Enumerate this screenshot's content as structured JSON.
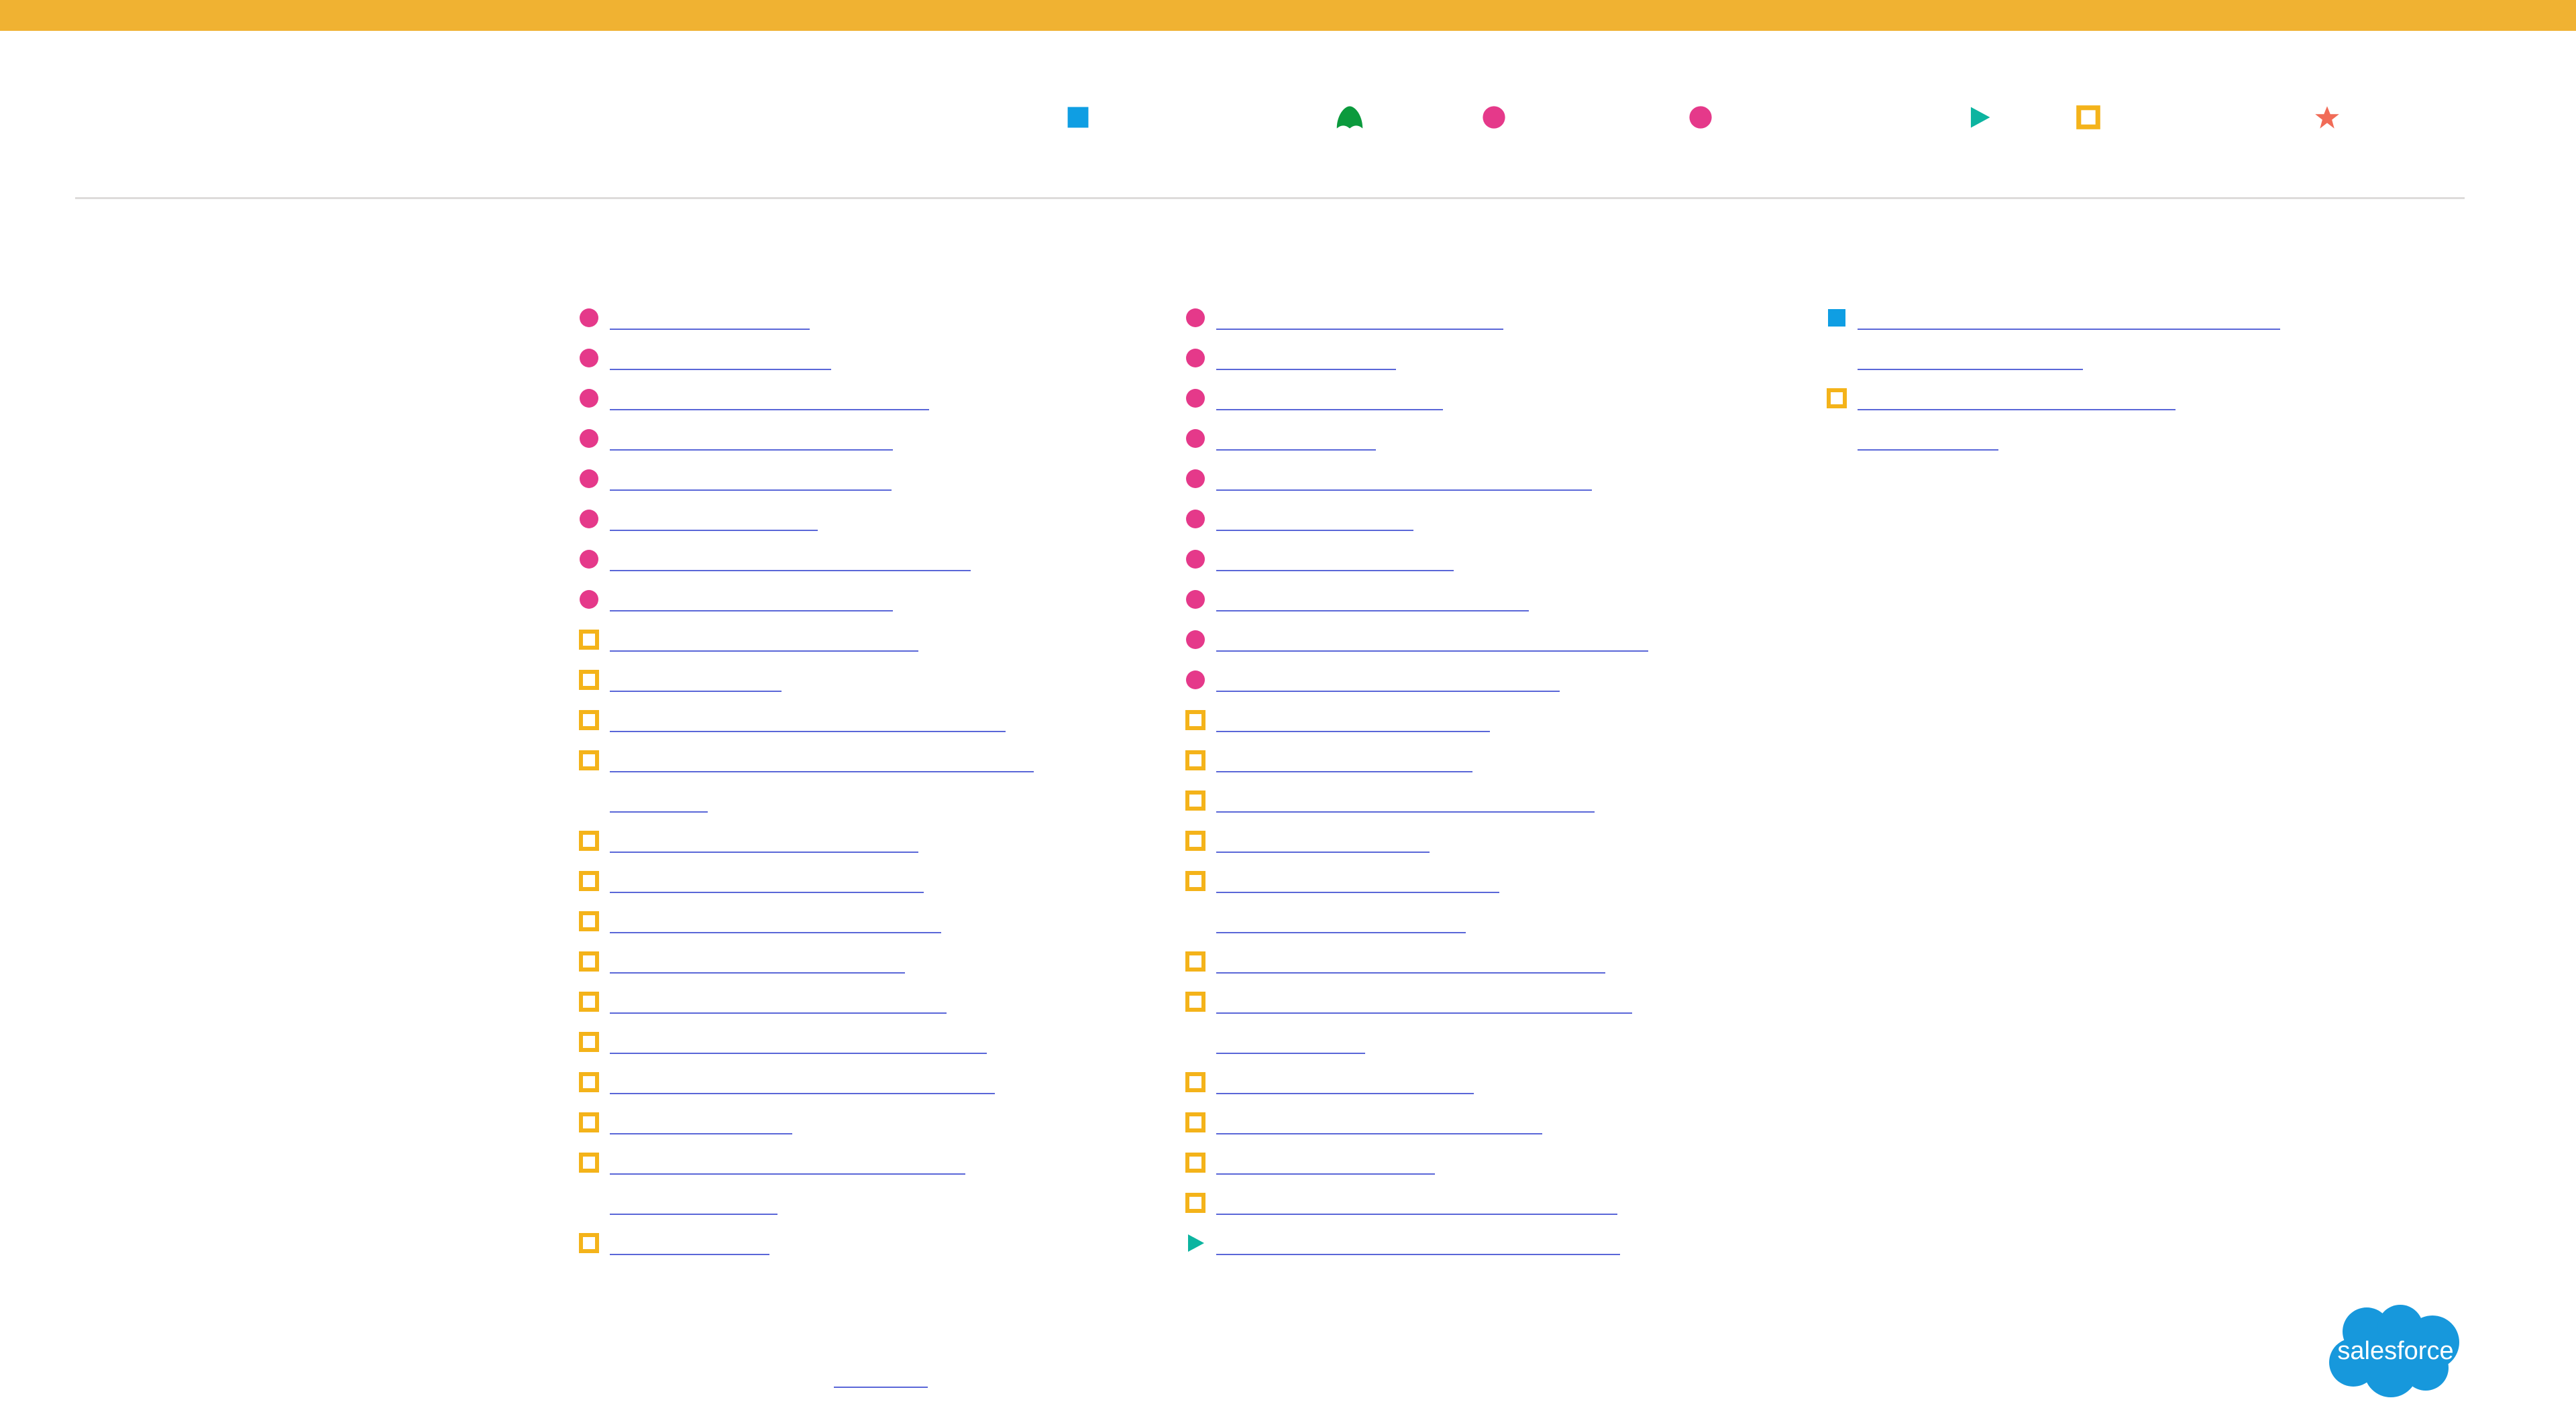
{
  "colors": {
    "top_bar": "#f0b232",
    "divider": "#dddbda",
    "link": "#5a67d8",
    "blue_square": "#0f9ee3",
    "green_shape": "#0b9a3d",
    "pink_circle": "#e5398a",
    "teal_triangle": "#0cb4a0",
    "yellow_square": "#f4b31a",
    "orange_star": "#f16b57",
    "logo": "#1798dc"
  },
  "legend": [
    {
      "icon": "blue-square-icon",
      "label": ""
    },
    {
      "icon": "green-cloud-shape-icon",
      "label": ""
    },
    {
      "icon": "pink-circle-icon",
      "label": ""
    },
    {
      "icon": "pink-circle-icon",
      "label": ""
    },
    {
      "icon": "teal-triangle-icon",
      "label": ""
    },
    {
      "icon": "yellow-square-outline-icon",
      "label": ""
    },
    {
      "icon": "orange-star-icon",
      "label": ""
    }
  ],
  "columns": [
    {
      "entries": [
        {
          "icon": "pink-circle-icon",
          "lines": [
            ""
          ]
        },
        {
          "icon": "pink-circle-icon",
          "lines": [
            ""
          ]
        },
        {
          "icon": "pink-circle-icon",
          "lines": [
            ""
          ]
        },
        {
          "icon": "pink-circle-icon",
          "lines": [
            ""
          ]
        },
        {
          "icon": "pink-circle-icon",
          "lines": [
            ""
          ]
        },
        {
          "icon": "pink-circle-icon",
          "lines": [
            ""
          ]
        },
        {
          "icon": "pink-circle-icon",
          "lines": [
            ""
          ]
        },
        {
          "icon": "pink-circle-icon",
          "lines": [
            ""
          ]
        },
        {
          "icon": "yellow-square-outline-icon",
          "lines": [
            ""
          ]
        },
        {
          "icon": "yellow-square-outline-icon",
          "lines": [
            ""
          ]
        },
        {
          "icon": "yellow-square-outline-icon",
          "lines": [
            ""
          ]
        },
        {
          "icon": "yellow-square-outline-icon",
          "lines": [
            "",
            ""
          ]
        },
        {
          "icon": "yellow-square-outline-icon",
          "lines": [
            ""
          ]
        },
        {
          "icon": "yellow-square-outline-icon",
          "lines": [
            ""
          ]
        },
        {
          "icon": "yellow-square-outline-icon",
          "lines": [
            ""
          ]
        },
        {
          "icon": "yellow-square-outline-icon",
          "lines": [
            ""
          ]
        },
        {
          "icon": "yellow-square-outline-icon",
          "lines": [
            ""
          ]
        },
        {
          "icon": "yellow-square-outline-icon",
          "lines": [
            ""
          ]
        },
        {
          "icon": "yellow-square-outline-icon",
          "lines": [
            ""
          ]
        },
        {
          "icon": "yellow-square-outline-icon",
          "lines": [
            ""
          ]
        },
        {
          "icon": "yellow-square-outline-icon",
          "lines": [
            "",
            ""
          ]
        },
        {
          "icon": "yellow-square-outline-icon",
          "lines": [
            ""
          ]
        }
      ]
    },
    {
      "entries": [
        {
          "icon": "pink-circle-icon",
          "lines": [
            ""
          ]
        },
        {
          "icon": "pink-circle-icon",
          "lines": [
            ""
          ]
        },
        {
          "icon": "pink-circle-icon",
          "lines": [
            ""
          ]
        },
        {
          "icon": "pink-circle-icon",
          "lines": [
            ""
          ]
        },
        {
          "icon": "pink-circle-icon",
          "lines": [
            ""
          ]
        },
        {
          "icon": "pink-circle-icon",
          "lines": [
            ""
          ]
        },
        {
          "icon": "pink-circle-icon",
          "lines": [
            ""
          ]
        },
        {
          "icon": "pink-circle-icon",
          "lines": [
            ""
          ]
        },
        {
          "icon": "pink-circle-icon",
          "lines": [
            ""
          ]
        },
        {
          "icon": "pink-circle-icon",
          "lines": [
            ""
          ]
        },
        {
          "icon": "yellow-square-outline-icon",
          "lines": [
            ""
          ]
        },
        {
          "icon": "yellow-square-outline-icon",
          "lines": [
            ""
          ]
        },
        {
          "icon": "yellow-square-outline-icon",
          "lines": [
            ""
          ]
        },
        {
          "icon": "yellow-square-outline-icon",
          "lines": [
            ""
          ]
        },
        {
          "icon": "yellow-square-outline-icon",
          "lines": [
            "",
            ""
          ]
        },
        {
          "icon": "yellow-square-outline-icon",
          "lines": [
            ""
          ]
        },
        {
          "icon": "yellow-square-outline-icon",
          "lines": [
            "",
            ""
          ]
        },
        {
          "icon": "yellow-square-outline-icon",
          "lines": [
            ""
          ]
        },
        {
          "icon": "yellow-square-outline-icon",
          "lines": [
            ""
          ]
        },
        {
          "icon": "yellow-square-outline-icon",
          "lines": [
            ""
          ]
        },
        {
          "icon": "yellow-square-outline-icon",
          "lines": [
            ""
          ]
        },
        {
          "icon": "teal-triangle-icon",
          "lines": [
            ""
          ]
        }
      ]
    },
    {
      "entries": [
        {
          "icon": "blue-square-icon",
          "lines": [
            "",
            ""
          ]
        },
        {
          "icon": "yellow-square-outline-icon",
          "lines": [
            "",
            ""
          ]
        }
      ]
    }
  ],
  "footer": {
    "link": ""
  },
  "logo": {
    "text": "salesforce"
  }
}
